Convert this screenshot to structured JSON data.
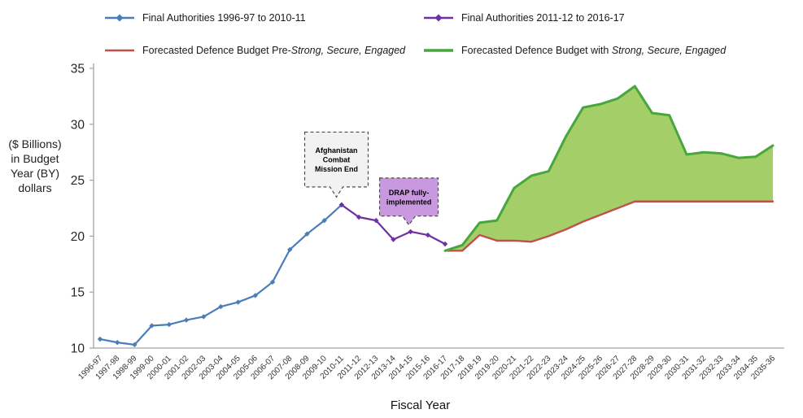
{
  "legend": {
    "items": [
      {
        "label": "Final Authorities 1996-97 to 2010-11",
        "italic": "",
        "color": "#4a7ebb"
      },
      {
        "label": "Final Authorities 2011-12 to 2016-17",
        "italic": "",
        "color": "#7030a0"
      },
      {
        "label": "Forecasted Defence Budget Pre-",
        "italic": "Strong, Secure, Engaged",
        "color": "#c0504d"
      },
      {
        "label": "Forecasted Defence Budget with ",
        "italic": "Strong, Secure, Engaged",
        "color": "#47a63c"
      }
    ]
  },
  "chart_data": {
    "type": "line",
    "title": "",
    "xlabel": "Fiscal Year",
    "ylabel": "($ Billions)\nin Budget\nYear (BY)\ndollars",
    "ylim": [
      10,
      35
    ],
    "yticks": [
      10,
      15,
      20,
      25,
      30,
      35
    ],
    "axis_color": "#a3a3a3",
    "tick_text_color": "#262626",
    "x_label_color": "#333333",
    "grid": false,
    "legend_position": "top",
    "categories": [
      "1996-97",
      "1997-98",
      "1998-99",
      "1999-00",
      "2000-01",
      "2001-02",
      "2002-03",
      "2003-04",
      "2004-05",
      "2005-06",
      "2006-07",
      "2007-08",
      "2008-09",
      "2009-10",
      "2010-11",
      "2011-12",
      "2012-13",
      "2013-14",
      "2014-15",
      "2015-16",
      "2016-17",
      "2017-18",
      "2018-19",
      "2019-20",
      "2020-21",
      "2021-22",
      "2022-23",
      "2023-24",
      "2024-25",
      "2025-26",
      "2026-27",
      "2027-28",
      "2028-29",
      "2029-30",
      "2030-31",
      "2031-32",
      "2032-33",
      "2033-34",
      "2034-35",
      "2035-36"
    ],
    "series": [
      {
        "id": "final-authorities-1996-2010",
        "name": "Final Authorities 1996-97 to 2010-11",
        "color": "#4a7ebb",
        "width": 2.2,
        "marker": true,
        "start_index": 0,
        "values": [
          10.8,
          10.5,
          10.3,
          12.0,
          12.1,
          12.5,
          12.8,
          13.7,
          14.1,
          14.7,
          15.9,
          18.8,
          20.2,
          21.4,
          22.8
        ]
      },
      {
        "id": "final-authorities-2011-2016",
        "name": "Final Authorities 2011-12 to 2016-17",
        "color": "#7030a0",
        "width": 2.2,
        "marker": true,
        "start_index": 14,
        "values": [
          22.8,
          21.7,
          21.4,
          19.7,
          20.4,
          20.1,
          19.3
        ]
      },
      {
        "id": "forecast-pre-sse",
        "name": "Forecasted Defence Budget Pre-Strong, Secure, Engaged",
        "color": "#c0504d",
        "width": 2.4,
        "marker": false,
        "start_index": 20,
        "values": [
          18.7,
          18.7,
          20.1,
          19.6,
          19.6,
          19.5,
          20.0,
          20.6,
          21.3,
          21.9,
          22.5,
          23.1,
          23.1,
          23.1,
          23.1,
          23.1,
          23.1,
          23.1,
          23.1,
          23.1
        ]
      },
      {
        "id": "forecast-with-sse",
        "name": "Forecasted Defence Budget with Strong, Secure, Engaged",
        "color": "#47a63c",
        "width": 3,
        "marker": false,
        "start_index": 20,
        "fill_color": "#9fcb5f",
        "fill_to": "forecast-pre-sse",
        "values": [
          18.7,
          19.2,
          21.2,
          21.4,
          24.3,
          25.4,
          25.8,
          28.9,
          31.5,
          31.8,
          32.3,
          33.4,
          31.0,
          30.8,
          27.3,
          27.5,
          27.4,
          27.0,
          27.1,
          28.1
        ]
      }
    ],
    "annotations": [
      {
        "id": "annotation-afghanistan",
        "lines": [
          "Afghanistan",
          "Combat",
          "Mission End"
        ],
        "fill": "#f2f2f2",
        "border": "#4d4d4d",
        "text_color": "#000000",
        "center_index": 13.7,
        "half_width": 39,
        "top_value": 29.3,
        "bottom_value": 24.4,
        "tip_value": 23.5
      },
      {
        "id": "annotation-drap",
        "lines": [
          "DRAP fully-",
          "implemented"
        ],
        "fill": "#c999e0",
        "border": "#4d4d4d",
        "text_color": "#000000",
        "center_index": 17.9,
        "half_width": 36,
        "top_value": 25.2,
        "bottom_value": 21.8,
        "tip_value": 21.0
      }
    ]
  }
}
